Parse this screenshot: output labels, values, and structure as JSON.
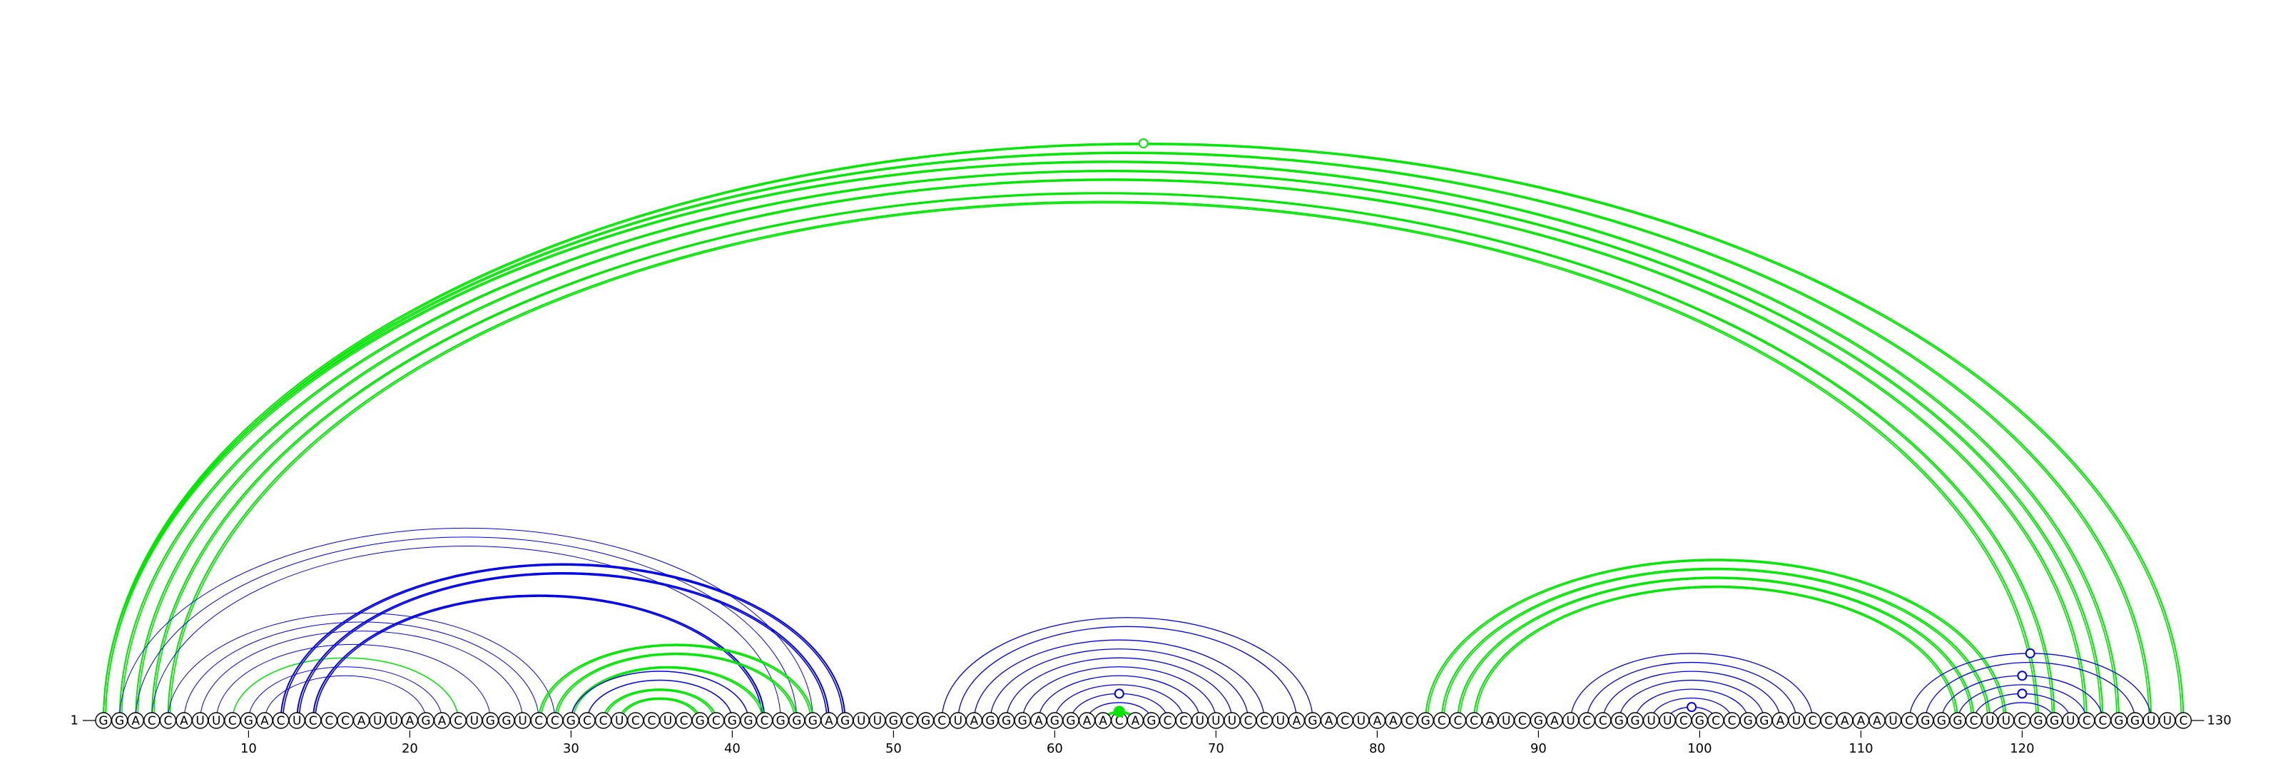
{
  "sequence": "GGACCAUUCGACUCCCAUUAGACUGGUCCGCCUCCUCGCGGCGGGAGUUGCGCUAGGGAGGAACAGCCUUUCCUAGACUAACGCCCAUCGAUCCGGUUCGCCGGAUCCAAAUCGGGCUUCGGUCCGGUUC",
  "length": 130,
  "start_label": "1",
  "end_label": "130",
  "ticks": [
    10,
    20,
    30,
    40,
    50,
    60,
    70,
    80,
    90,
    100,
    110,
    120
  ],
  "colors": {
    "blue": "#0000e6",
    "green": "#00e600",
    "backbone": "#000000"
  },
  "arcs": [
    {
      "i": 1,
      "j": 128,
      "color": "green",
      "w": 2
    },
    {
      "i": 1,
      "j": 126,
      "color": "green",
      "w": 2
    },
    {
      "i": 2,
      "j": 125,
      "color": "green",
      "w": 2
    },
    {
      "i": 3,
      "j": 124,
      "color": "green",
      "w": 2
    },
    {
      "i": 4,
      "j": 122,
      "color": "green",
      "w": 2
    },
    {
      "i": 5,
      "j": 121,
      "color": "green",
      "w": 2
    },
    {
      "i": 1,
      "j": 130,
      "color": "green",
      "w": 2
    },
    {
      "i": 2,
      "j": 45,
      "color": "blue",
      "w": 1
    },
    {
      "i": 3,
      "j": 44,
      "color": "blue",
      "w": 1
    },
    {
      "i": 4,
      "j": 43,
      "color": "blue",
      "w": 1
    },
    {
      "i": 5,
      "j": 29,
      "color": "blue",
      "w": 1
    },
    {
      "i": 6,
      "j": 28,
      "color": "blue",
      "w": 1
    },
    {
      "i": 7,
      "j": 27,
      "color": "blue",
      "w": 1
    },
    {
      "i": 8,
      "j": 25,
      "color": "blue",
      "w": 1
    },
    {
      "i": 9,
      "j": 23,
      "color": "green",
      "w": 1.5
    },
    {
      "i": 10,
      "j": 22,
      "color": "blue",
      "w": 1
    },
    {
      "i": 11,
      "j": 21,
      "color": "blue",
      "w": 1
    },
    {
      "i": 12,
      "j": 47,
      "color": "blue",
      "w": 2
    },
    {
      "i": 13,
      "j": 46,
      "color": "blue",
      "w": 2
    },
    {
      "i": 14,
      "j": 42,
      "color": "blue",
      "w": 2
    },
    {
      "i": 28,
      "j": 45,
      "color": "green",
      "w": 2
    },
    {
      "i": 29,
      "j": 44,
      "color": "green",
      "w": 2
    },
    {
      "i": 30,
      "j": 42,
      "color": "green",
      "w": 2
    },
    {
      "i": 30,
      "j": 41,
      "color": "blue",
      "w": 1.5
    },
    {
      "i": 31,
      "j": 40,
      "color": "blue",
      "w": 1.5
    },
    {
      "i": 32,
      "j": 39,
      "color": "green",
      "w": 2
    },
    {
      "i": 33,
      "j": 38,
      "color": "green",
      "w": 2
    },
    {
      "i": 53,
      "j": 76,
      "color": "blue",
      "w": 1.3
    },
    {
      "i": 54,
      "j": 75,
      "color": "blue",
      "w": 1.3
    },
    {
      "i": 55,
      "j": 73,
      "color": "blue",
      "w": 1.3
    },
    {
      "i": 56,
      "j": 72,
      "color": "blue",
      "w": 1.3
    },
    {
      "i": 57,
      "j": 71,
      "color": "blue",
      "w": 1.3
    },
    {
      "i": 58,
      "j": 70,
      "color": "blue",
      "w": 1.3
    },
    {
      "i": 59,
      "j": 69,
      "color": "blue",
      "w": 1.3
    },
    {
      "i": 60,
      "j": 68,
      "color": "blue",
      "w": 1.3
    },
    {
      "i": 61,
      "j": 67,
      "color": "blue",
      "w": 1.3
    },
    {
      "i": 62,
      "j": 66,
      "color": "blue",
      "w": 1.3
    },
    {
      "i": 63,
      "j": 65,
      "color": "green",
      "w": 2
    },
    {
      "i": 83,
      "j": 119,
      "color": "green",
      "w": 2
    },
    {
      "i": 84,
      "j": 118,
      "color": "green",
      "w": 2
    },
    {
      "i": 85,
      "j": 117,
      "color": "green",
      "w": 2
    },
    {
      "i": 86,
      "j": 116,
      "color": "green",
      "w": 2
    },
    {
      "i": 92,
      "j": 107,
      "color": "blue",
      "w": 1.3
    },
    {
      "i": 93,
      "j": 106,
      "color": "blue",
      "w": 1.3
    },
    {
      "i": 94,
      "j": 105,
      "color": "blue",
      "w": 1.3
    },
    {
      "i": 95,
      "j": 104,
      "color": "blue",
      "w": 1.3
    },
    {
      "i": 96,
      "j": 103,
      "color": "blue",
      "w": 1.3
    },
    {
      "i": 97,
      "j": 102,
      "color": "blue",
      "w": 1.3
    },
    {
      "i": 98,
      "j": 101,
      "color": "blue",
      "w": 1.3
    },
    {
      "i": 113,
      "j": 128,
      "color": "blue",
      "w": 1.3
    },
    {
      "i": 114,
      "j": 127,
      "color": "blue",
      "w": 1.3
    },
    {
      "i": 115,
      "j": 125,
      "color": "blue",
      "w": 1.3
    },
    {
      "i": 116,
      "j": 124,
      "color": "blue",
      "w": 1.3
    },
    {
      "i": 117,
      "j": 123,
      "color": "blue",
      "w": 1.3
    },
    {
      "i": 118,
      "j": 122,
      "color": "blue",
      "w": 1.3
    }
  ],
  "markers": [
    {
      "i": 1,
      "j": 130,
      "style": "open",
      "color": "green"
    },
    {
      "i": 61,
      "j": 67,
      "style": "open",
      "color": "blue"
    },
    {
      "i": 63,
      "j": 65,
      "style": "filled",
      "color": "green"
    },
    {
      "i": 98,
      "j": 101,
      "style": "open",
      "color": "blue"
    },
    {
      "i": 113,
      "j": 128,
      "style": "open",
      "color": "blue"
    },
    {
      "i": 115,
      "j": 125,
      "style": "open",
      "color": "blue"
    },
    {
      "i": 117,
      "j": 123,
      "style": "open",
      "color": "blue"
    }
  ]
}
